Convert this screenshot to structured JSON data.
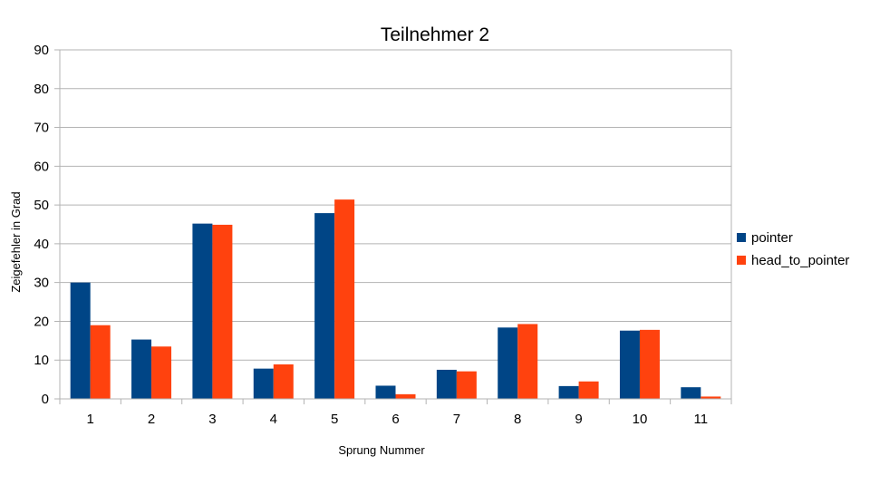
{
  "chart_data": {
    "type": "bar",
    "title": "Teilnehmer 2",
    "xlabel": "Sprung Nummer",
    "ylabel": "Zeigefehler in Grad",
    "categories": [
      "1",
      "2",
      "3",
      "4",
      "5",
      "6",
      "7",
      "8",
      "9",
      "10",
      "11"
    ],
    "series": [
      {
        "name": "pointer",
        "color": "#004586",
        "values": [
          30,
          15.3,
          45.2,
          7.8,
          47.9,
          3.4,
          7.5,
          18.4,
          3.3,
          17.6,
          3.0
        ]
      },
      {
        "name": "head_to_pointer",
        "color": "#ff420e",
        "values": [
          19,
          13.5,
          44.9,
          8.9,
          51.4,
          1.2,
          7.1,
          19.3,
          4.5,
          17.8,
          0.6
        ]
      }
    ],
    "ylim": [
      0,
      90
    ],
    "yticks": [
      0,
      10,
      20,
      30,
      40,
      50,
      60,
      70,
      80,
      90
    ],
    "grid": true,
    "legend_position": "right"
  }
}
